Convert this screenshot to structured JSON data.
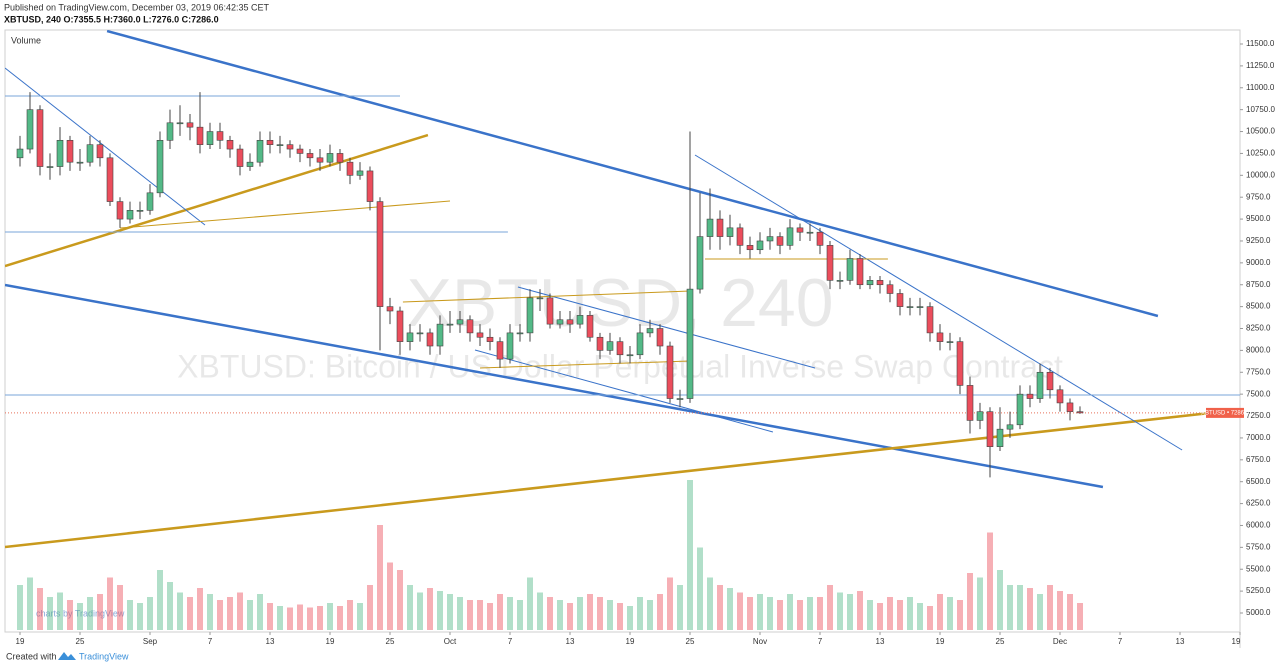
{
  "published": "Published on TradingView.com, December 03, 2019 06:42:35 CET",
  "symbol_info": "XBTUSD, 240 O:7355.5 H:7360.0 L:7276.0 C:7286.0",
  "footer": {
    "prefix": "Created with",
    "brand": "TradingView"
  },
  "chart_data": {
    "type": "candlestick",
    "pane_label": "Volume",
    "watermark": {
      "symbol": "XBTUSD, 240",
      "description": "XBTUSD: Bitcoin / US Dollar Perpetual Inverse Swap Contract",
      "credit": "charts by TradingView"
    },
    "last_price": 7286,
    "last_price_label": "XBTUSD • 7286.0",
    "colors": {
      "up": "#53b987",
      "down": "#eb4d5c"
    },
    "xlim": [
      "2019-08-17T12:00:00Z",
      "2019-12-19T00:00:00Z"
    ],
    "ylim": [
      4783,
      11660
    ],
    "yticks": [
      {
        "value": 5000,
        "label": "5000.0"
      },
      {
        "value": 5250,
        "label": "5250.0"
      },
      {
        "value": 5500,
        "label": "5500.0"
      },
      {
        "value": 5750,
        "label": "5750.0"
      },
      {
        "value": 6000,
        "label": "6000.0"
      },
      {
        "value": 6250,
        "label": "6250.0"
      },
      {
        "value": 6500,
        "label": "6500.0"
      },
      {
        "value": 6750,
        "label": "6750.0"
      },
      {
        "value": 7000,
        "label": "7000.0"
      },
      {
        "value": 7250,
        "label": "7250.0"
      },
      {
        "value": 7500,
        "label": "7500.0"
      },
      {
        "value": 7750,
        "label": "7750.0"
      },
      {
        "value": 8000,
        "label": "8000.0"
      },
      {
        "value": 8250,
        "label": "8250.0"
      },
      {
        "value": 8500,
        "label": "8500.0"
      },
      {
        "value": 8750,
        "label": "8750.0"
      },
      {
        "value": 9000,
        "label": "9000.0"
      },
      {
        "value": 9250,
        "label": "9250.0"
      },
      {
        "value": 9500,
        "label": "9500.0"
      },
      {
        "value": 9750,
        "label": "9750.0"
      },
      {
        "value": 10000,
        "label": "10000.0"
      },
      {
        "value": 10250,
        "label": "10250.0"
      },
      {
        "value": 10500,
        "label": "10500.0"
      },
      {
        "value": 10750,
        "label": "10750.0"
      },
      {
        "value": 11000,
        "label": "11000.0"
      },
      {
        "value": 11250,
        "label": "11250.0"
      },
      {
        "value": 11500,
        "label": "11500.0"
      }
    ],
    "xticks": [
      {
        "value": "2019-08-19",
        "label": "19"
      },
      {
        "value": "2019-08-25",
        "label": "25"
      },
      {
        "value": "2019-09-01",
        "label": "Sep"
      },
      {
        "value": "2019-09-07",
        "label": "7"
      },
      {
        "value": "2019-09-13",
        "label": "13"
      },
      {
        "value": "2019-09-19",
        "label": "19"
      },
      {
        "value": "2019-09-25",
        "label": "25"
      },
      {
        "value": "2019-10-01",
        "label": "Oct"
      },
      {
        "value": "2019-10-07",
        "label": "7"
      },
      {
        "value": "2019-10-13",
        "label": "13"
      },
      {
        "value": "2019-10-19",
        "label": "19"
      },
      {
        "value": "2019-10-25",
        "label": "25"
      },
      {
        "value": "2019-11-01",
        "label": "Nov"
      },
      {
        "value": "2019-11-07",
        "label": "7"
      },
      {
        "value": "2019-11-13",
        "label": "13"
      },
      {
        "value": "2019-11-19",
        "label": "19"
      },
      {
        "value": "2019-11-25",
        "label": "25"
      },
      {
        "value": "2019-12-01",
        "label": "Dec"
      },
      {
        "value": "2019-12-07",
        "label": "7"
      },
      {
        "value": "2019-12-13",
        "label": "13"
      },
      {
        "value": "2019-12-19",
        "label": "19"
      }
    ],
    "x": [
      "2019-08-19",
      "2019-08-20",
      "2019-08-21",
      "2019-08-22",
      "2019-08-23",
      "2019-08-24",
      "2019-08-25",
      "2019-08-26",
      "2019-08-27",
      "2019-08-28",
      "2019-08-29",
      "2019-08-30",
      "2019-08-31",
      "2019-09-01",
      "2019-09-02",
      "2019-09-03",
      "2019-09-04",
      "2019-09-05",
      "2019-09-06",
      "2019-09-07",
      "2019-09-08",
      "2019-09-09",
      "2019-09-10",
      "2019-09-11",
      "2019-09-12",
      "2019-09-13",
      "2019-09-14",
      "2019-09-15",
      "2019-09-16",
      "2019-09-17",
      "2019-09-18",
      "2019-09-19",
      "2019-09-20",
      "2019-09-21",
      "2019-09-22",
      "2019-09-23",
      "2019-09-24",
      "2019-09-25",
      "2019-09-26",
      "2019-09-27",
      "2019-09-28",
      "2019-09-29",
      "2019-09-30",
      "2019-10-01",
      "2019-10-02",
      "2019-10-03",
      "2019-10-04",
      "2019-10-05",
      "2019-10-06",
      "2019-10-07",
      "2019-10-08",
      "2019-10-09",
      "2019-10-10",
      "2019-10-11",
      "2019-10-12",
      "2019-10-13",
      "2019-10-14",
      "2019-10-15",
      "2019-10-16",
      "2019-10-17",
      "2019-10-18",
      "2019-10-19",
      "2019-10-20",
      "2019-10-21",
      "2019-10-22",
      "2019-10-23",
      "2019-10-24",
      "2019-10-25",
      "2019-10-26",
      "2019-10-27",
      "2019-10-28",
      "2019-10-29",
      "2019-10-30",
      "2019-10-31",
      "2019-11-01",
      "2019-11-02",
      "2019-11-03",
      "2019-11-04",
      "2019-11-05",
      "2019-11-06",
      "2019-11-07",
      "2019-11-08",
      "2019-11-09",
      "2019-11-10",
      "2019-11-11",
      "2019-11-12",
      "2019-11-13",
      "2019-11-14",
      "2019-11-15",
      "2019-11-16",
      "2019-11-17",
      "2019-11-18",
      "2019-11-19",
      "2019-11-20",
      "2019-11-21",
      "2019-11-22",
      "2019-11-23",
      "2019-11-24",
      "2019-11-25",
      "2019-11-26",
      "2019-11-27",
      "2019-11-28",
      "2019-11-29",
      "2019-11-30",
      "2019-12-01",
      "2019-12-02",
      "2019-12-03"
    ],
    "opens": [
      10200,
      10300,
      10750,
      10100,
      10100,
      10400,
      10150,
      10150,
      10350,
      10200,
      9700,
      9500,
      9600,
      9600,
      9800,
      10400,
      10600,
      10600,
      10550,
      10350,
      10500,
      10400,
      10300,
      10100,
      10150,
      10400,
      10350,
      10350,
      10300,
      10250,
      10200,
      10150,
      10250,
      10150,
      10000,
      10050,
      9700,
      8500,
      8450,
      8100,
      8200,
      8200,
      8050,
      8300,
      8300,
      8350,
      8200,
      8150,
      8100,
      7900,
      8200,
      8200,
      8600,
      8600,
      8300,
      8350,
      8300,
      8400,
      8150,
      8000,
      8100,
      7950,
      7950,
      8200,
      8250,
      8050,
      7450,
      7450,
      8700,
      9300,
      9500,
      9300,
      9400,
      9200,
      9150,
      9250,
      9300,
      9200,
      9400,
      9350,
      9350,
      9200,
      8800,
      8800,
      9050,
      8750,
      8800,
      8750,
      8650,
      8500,
      8500,
      8500,
      8200,
      8100,
      8100,
      7600,
      7200,
      7300,
      6900,
      7100,
      7150,
      7500,
      7450,
      7750,
      7550,
      7400,
      7300
    ],
    "highs": [
      10450,
      10950,
      10800,
      10250,
      10550,
      10450,
      10300,
      10450,
      10400,
      10250,
      9750,
      9700,
      9700,
      9900,
      10500,
      10750,
      10800,
      10700,
      10950,
      10600,
      10600,
      10450,
      10350,
      10250,
      10500,
      10500,
      10450,
      10400,
      10350,
      10300,
      10300,
      10350,
      10300,
      10200,
      10150,
      10100,
      9750,
      8600,
      8500,
      8300,
      8300,
      8250,
      8400,
      8450,
      8450,
      8400,
      8300,
      8250,
      8150,
      8300,
      8300,
      8700,
      8700,
      8650,
      8450,
      8450,
      8500,
      8450,
      8200,
      8200,
      8150,
      8050,
      8300,
      8350,
      8300,
      8100,
      7550,
      10500,
      9800,
      9850,
      9600,
      9550,
      9450,
      9300,
      9350,
      9400,
      9350,
      9500,
      9450,
      9450,
      9400,
      9250,
      8900,
      9150,
      9100,
      8850,
      8850,
      8800,
      8700,
      8600,
      8600,
      8550,
      8300,
      8200,
      8150,
      7700,
      7400,
      7350,
      7350,
      7300,
      7600,
      7600,
      7850,
      7800,
      7600,
      7450,
      7360
    ],
    "lows": [
      10100,
      10250,
      10000,
      9950,
      10000,
      10050,
      10050,
      10100,
      10100,
      9650,
      9400,
      9450,
      9500,
      9550,
      9750,
      10300,
      10450,
      10400,
      10250,
      10300,
      10300,
      10200,
      10000,
      10050,
      10100,
      10250,
      10250,
      10200,
      10150,
      10100,
      10050,
      10100,
      10050,
      9900,
      9950,
      9600,
      8000,
      8300,
      7950,
      8000,
      8100,
      7950,
      7950,
      8200,
      8200,
      8100,
      8050,
      8000,
      7800,
      7850,
      8100,
      8100,
      8450,
      8250,
      8250,
      8200,
      8250,
      8100,
      7900,
      7950,
      7850,
      7850,
      7900,
      8150,
      7950,
      7400,
      7350,
      7400,
      8650,
      9150,
      9150,
      9200,
      9100,
      9050,
      9100,
      9150,
      9100,
      9150,
      9250,
      9250,
      9100,
      8700,
      8700,
      8750,
      8700,
      8700,
      8650,
      8550,
      8400,
      8400,
      8400,
      8100,
      8000,
      8000,
      7500,
      7050,
      7100,
      6550,
      6850,
      7000,
      7100,
      7350,
      7400,
      7450,
      7300,
      7200,
      7276
    ],
    "closes": [
      10300,
      10750,
      10100,
      10100,
      10400,
      10150,
      10150,
      10350,
      10200,
      9700,
      9500,
      9600,
      9600,
      9800,
      10400,
      10600,
      10600,
      10550,
      10350,
      10500,
      10400,
      10300,
      10100,
      10150,
      10400,
      10350,
      10350,
      10300,
      10250,
      10200,
      10150,
      10250,
      10150,
      10000,
      10050,
      9700,
      8500,
      8450,
      8100,
      8200,
      8200,
      8050,
      8300,
      8300,
      8350,
      8200,
      8150,
      8100,
      7900,
      8200,
      8200,
      8600,
      8600,
      8300,
      8350,
      8300,
      8400,
      8150,
      8000,
      8100,
      7950,
      7950,
      8200,
      8250,
      8050,
      7450,
      7450,
      8700,
      9300,
      9500,
      9300,
      9400,
      9200,
      9150,
      9250,
      9300,
      9200,
      9400,
      9350,
      9350,
      9200,
      8800,
      8800,
      9050,
      8750,
      8800,
      8750,
      8650,
      8500,
      8500,
      8500,
      8200,
      8100,
      8100,
      7600,
      7200,
      7300,
      6900,
      7100,
      7150,
      7500,
      7450,
      7750,
      7550,
      7400,
      7300,
      7286
    ],
    "volume": [
      30,
      35,
      28,
      22,
      25,
      20,
      18,
      22,
      24,
      35,
      30,
      20,
      18,
      22,
      40,
      32,
      25,
      22,
      28,
      24,
      20,
      22,
      25,
      20,
      24,
      18,
      16,
      15,
      17,
      15,
      16,
      18,
      16,
      20,
      18,
      30,
      70,
      45,
      40,
      30,
      25,
      28,
      26,
      24,
      22,
      20,
      20,
      18,
      24,
      22,
      20,
      35,
      25,
      22,
      20,
      18,
      22,
      24,
      22,
      20,
      18,
      16,
      22,
      20,
      24,
      35,
      30,
      100,
      55,
      35,
      30,
      28,
      25,
      22,
      24,
      22,
      20,
      24,
      20,
      22,
      22,
      30,
      25,
      24,
      26,
      20,
      18,
      22,
      20,
      22,
      18,
      16,
      24,
      22,
      20,
      38,
      35,
      65,
      40,
      30,
      30,
      28,
      24,
      30,
      26,
      24,
      18
    ],
    "trendlines": [
      {
        "x": [
          "2019-08-27T17:00:00Z",
          "2019-12-10T19:00:00Z"
        ],
        "y": [
          11648,
          8393
        ],
        "color": "#3a73c9",
        "style": "thick"
      },
      {
        "x": [
          "2019-08-17T12:00:00Z",
          "2019-12-05T07:00:00Z"
        ],
        "y": [
          8747,
          6439
        ],
        "color": "#3a73c9",
        "style": "thick"
      },
      {
        "x": [
          "2019-08-17T12:00:00Z",
          "2019-12-16T00:00:00Z"
        ],
        "y": [
          5754,
          7285
        ],
        "color": "#c99a1d",
        "style": "thick"
      },
      {
        "x": [
          "2019-08-17T12:00:00Z",
          "2019-09-28T19:00:00Z"
        ],
        "y": [
          8964,
          10460
        ],
        "color": "#c99a1d",
        "style": "thick"
      },
      {
        "x": [
          "2019-08-17T12:00:00Z",
          "2019-09-06T12:00:00Z"
        ],
        "y": [
          11226,
          9432
        ],
        "color": "#3a73c9",
        "style": "thin"
      },
      {
        "x": [
          "2019-10-25T12:00:00Z",
          "2019-12-13T05:00:00Z"
        ],
        "y": [
          10232,
          6862
        ],
        "color": "#3a73c9",
        "style": "thin"
      },
      {
        "x": [
          "2019-10-07T19:00:00Z",
          "2019-11-06T12:00:00Z"
        ],
        "y": [
          8724,
          7799
        ],
        "color": "#3a73c9",
        "style": "thin"
      },
      {
        "x": [
          "2019-10-03T12:00:00Z",
          "2019-11-02T07:00:00Z"
        ],
        "y": [
          8004,
          7068
        ],
        "color": "#3a73c9",
        "style": "thin"
      },
      {
        "x": [
          "2019-08-29T00:00:00Z",
          "2019-10-01T00:00:00Z"
        ],
        "y": [
          9398,
          9706
        ],
        "color": "#c99a1d",
        "style": "thin"
      },
      {
        "x": [
          "2019-09-26T07:00:00Z",
          "2019-10-25T00:00:00Z"
        ],
        "y": [
          8553,
          8678
        ],
        "color": "#c99a1d",
        "style": "thin"
      },
      {
        "x": [
          "2019-10-04T00:00:00Z",
          "2019-10-25T00:00:00Z"
        ],
        "y": [
          7799,
          7879
        ],
        "color": "#c99a1d",
        "style": "thin"
      },
      {
        "x": [
          "2019-10-26T12:00:00Z",
          "2019-11-13T19:00:00Z"
        ],
        "y": [
          9044,
          9044
        ],
        "color": "#c99a1d",
        "style": "thin"
      },
      {
        "x": [
          "2019-08-17T12:00:00Z",
          "2019-09-26T00:00:00Z"
        ],
        "y": [
          10906,
          10906
        ],
        "color": "#7aa6d9",
        "style": "thin"
      },
      {
        "x": [
          "2019-08-17T12:00:00Z",
          "2019-10-06T19:00:00Z"
        ],
        "y": [
          9352,
          9352
        ],
        "color": "#7aa6d9",
        "style": "thin"
      },
      {
        "x": [
          "2019-08-17T12:00:00Z",
          "2019-12-19T00:00:00Z"
        ],
        "y": [
          7490,
          7490
        ],
        "color": "#7aa6d9",
        "style": "thin"
      }
    ]
  }
}
